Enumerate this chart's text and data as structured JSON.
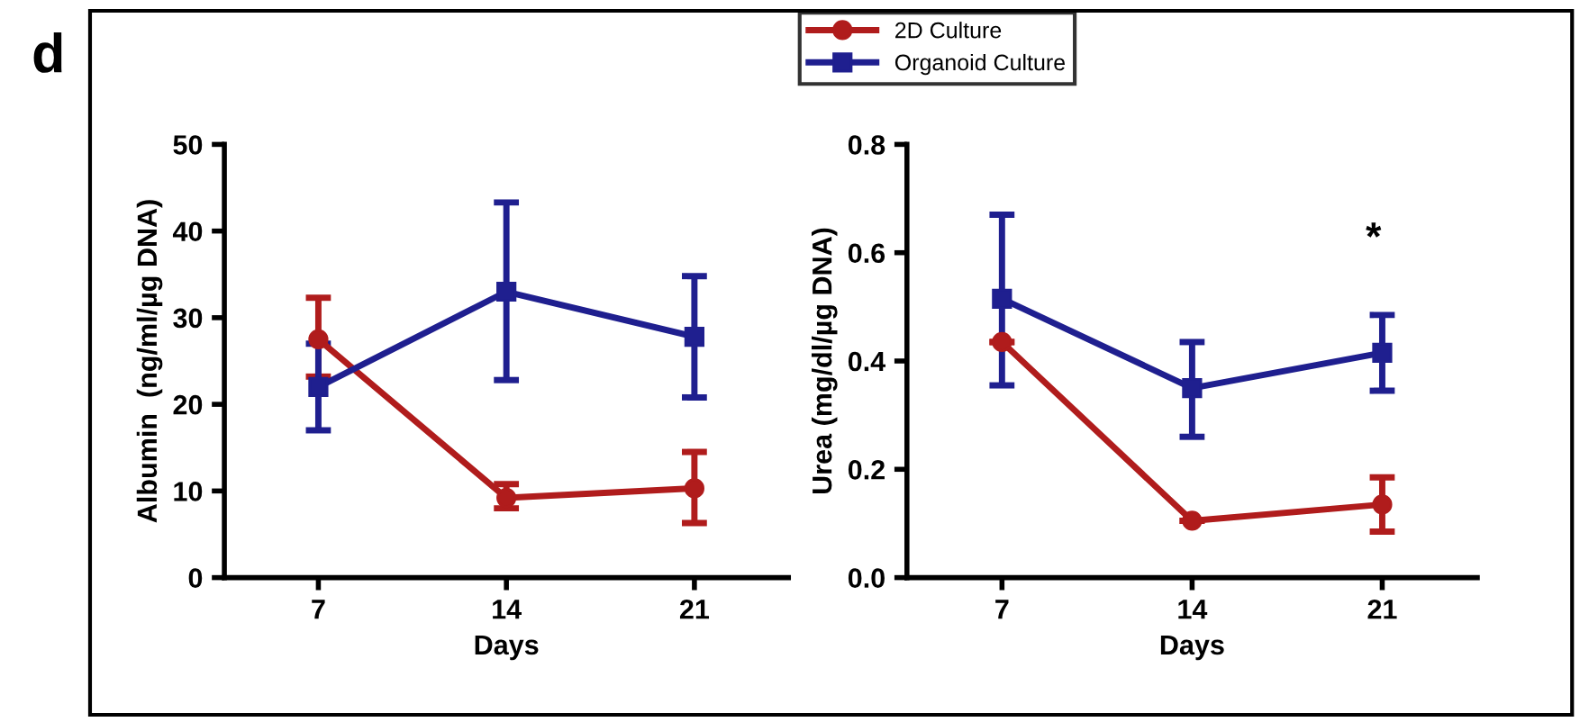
{
  "chart_data": [
    {
      "type": "line",
      "xlabel": "Days",
      "ylabel": "Albumin  (ng/ml/µg DNA)",
      "annotations": [
        "d"
      ],
      "x": [
        7,
        14,
        21
      ],
      "xlim": [
        3.5,
        24.5
      ],
      "xticks": [
        7,
        14,
        21
      ],
      "ylim": [
        0,
        50
      ],
      "yticks": [
        0,
        10,
        20,
        30,
        40,
        50
      ],
      "grid": false,
      "legend": "top right",
      "series": [
        {
          "name": "2D Culture",
          "color": "#b01c1c",
          "marker": "circle",
          "values": [
            27.5,
            9.2,
            10.3
          ],
          "errors": [
            [
              23.2,
              32.3
            ],
            [
              8,
              10.8
            ],
            [
              6.3,
              14.5
            ]
          ]
        },
        {
          "name": "Organoid Culture",
          "color": "#1f1f8f",
          "marker": "square",
          "values": [
            22,
            33,
            27.8
          ],
          "errors": [
            [
              17,
              27
            ],
            [
              22.8,
              43.3
            ],
            [
              20.8,
              34.8
            ]
          ]
        }
      ]
    },
    {
      "type": "line",
      "xlabel": "Days",
      "ylabel": "Urea (mg/dl/µg DNA)",
      "annotations": [
        "*"
      ],
      "x": [
        7,
        14,
        21
      ],
      "xlim": [
        3.5,
        24.5
      ],
      "xticks": [
        7,
        14,
        21
      ],
      "ylim": [
        0,
        0.8
      ],
      "yticks": [
        {
          "value": 0,
          "label": "0.0"
        },
        0.2,
        0.4,
        0.6,
        0.8
      ],
      "grid": false,
      "series": [
        {
          "color": "#b01c1c",
          "marker": "circle",
          "values": [
            0.435,
            0.105,
            0.135
          ],
          "errors": [
            null,
            null,
            [
              0.085,
              0.185
            ]
          ]
        },
        {
          "color": "#1f1f8f",
          "marker": "square",
          "values": [
            0.515,
            0.35,
            0.415
          ],
          "errors": [
            [
              0.355,
              0.67
            ],
            [
              0.26,
              0.435
            ],
            [
              0.345,
              0.485
            ]
          ]
        }
      ]
    }
  ]
}
